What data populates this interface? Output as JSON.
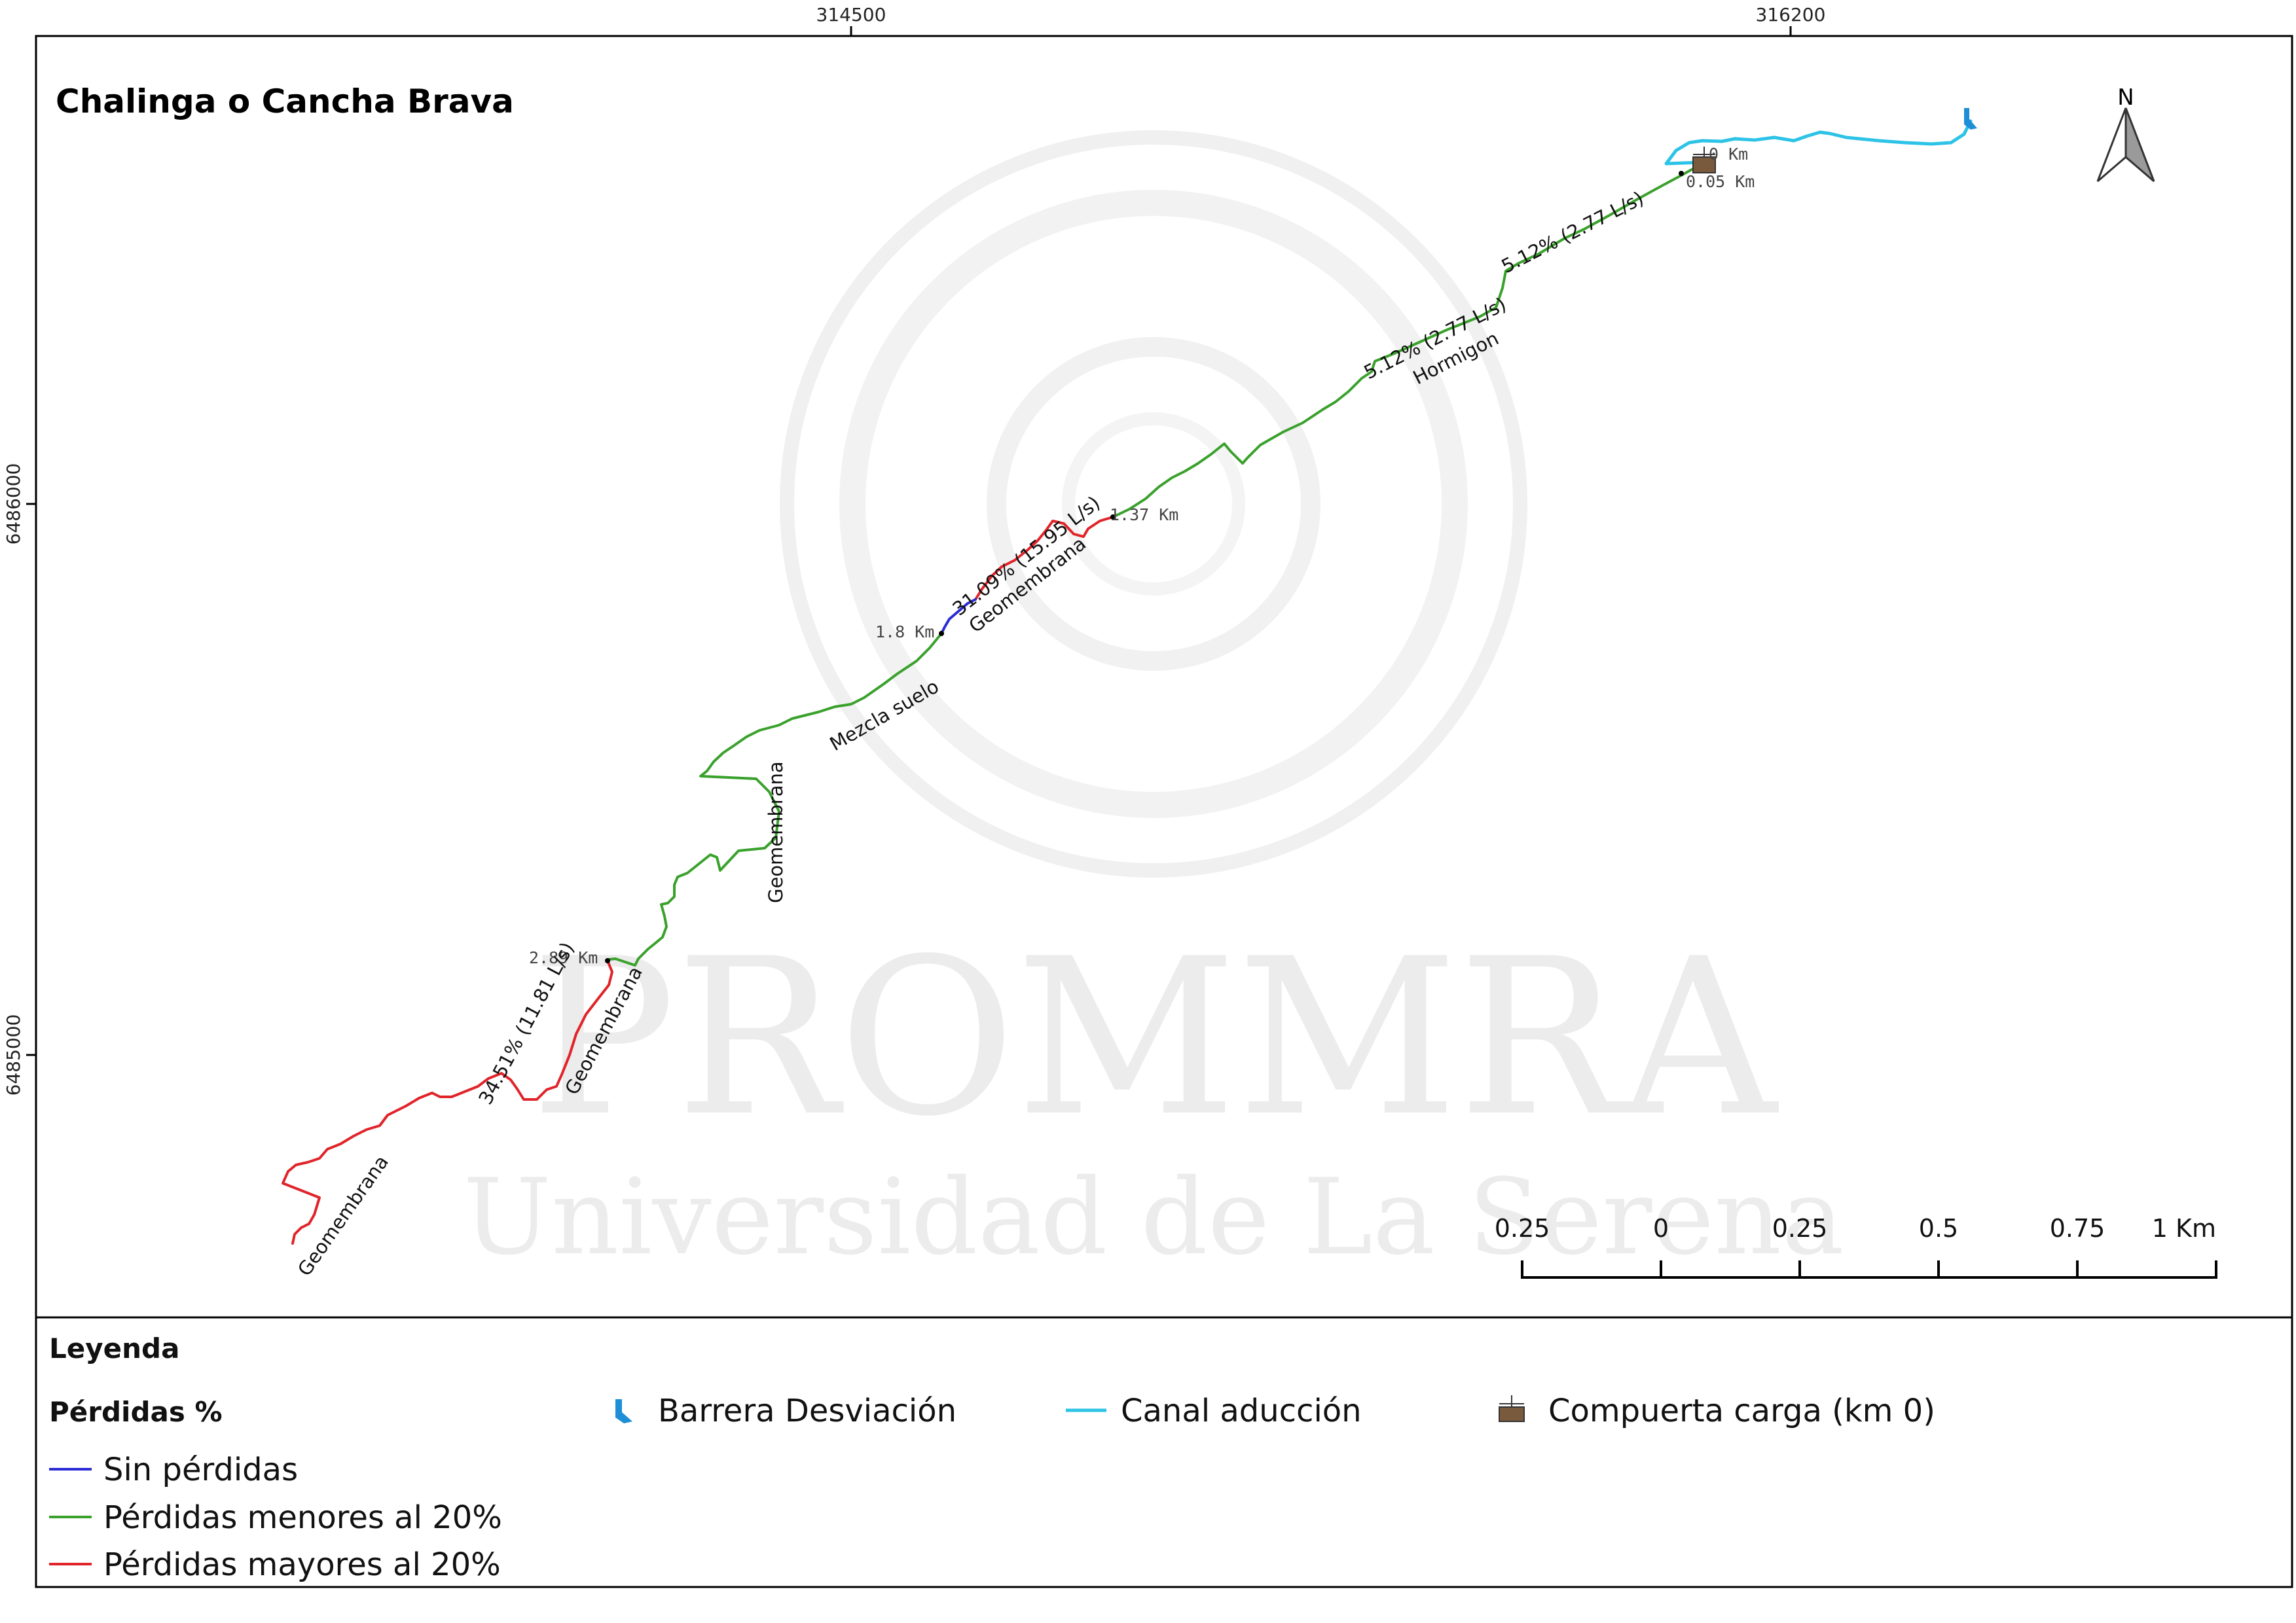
{
  "map": {
    "title": "Chalinga o Cancha Brava",
    "coords_top": [
      "314500",
      "316200"
    ],
    "coords_left": [
      "6486000",
      "6485000"
    ],
    "north_label": "N",
    "watermark": {
      "line1": "PROMMRA",
      "line2": "Universidad de La Serena"
    },
    "km_labels": [
      "0 Km",
      "0.05 Km",
      "1.37 Km",
      "1.8 Km",
      "2.89 Km"
    ],
    "loss_labels": [
      "5.12% (2.77 L/s)",
      "5.12% (2.77 L/s)",
      "31.09% (15.95 L/s)",
      "34.51% (11.81 L/s)"
    ],
    "material_labels": [
      "Hormigon",
      "Geomembrana",
      "Mezcla suelo",
      "Geomembrana",
      "Geomembrana",
      "Geomembrana"
    ],
    "scale": {
      "ticks": [
        "0.25",
        "0",
        "0.25",
        "0.5",
        "0.75",
        "1 Km"
      ]
    },
    "colors": {
      "no_loss": "#2b2bd6",
      "minor_loss": "#3aa12c",
      "major_loss": "#e0242a",
      "canal": "#2cc3e6",
      "barrier": "#1e8fd6",
      "gate": "#7a5a3c"
    }
  },
  "legend": {
    "title": "Leyenda",
    "group_title": "Pérdidas %",
    "items": [
      "Sin pérdidas",
      "Pérdidas menores al 20%",
      "Pérdidas mayores al 20%"
    ],
    "symbols": [
      "Barrera Desviación",
      "Canal aducción",
      "Compuerta carga (km 0)"
    ]
  }
}
